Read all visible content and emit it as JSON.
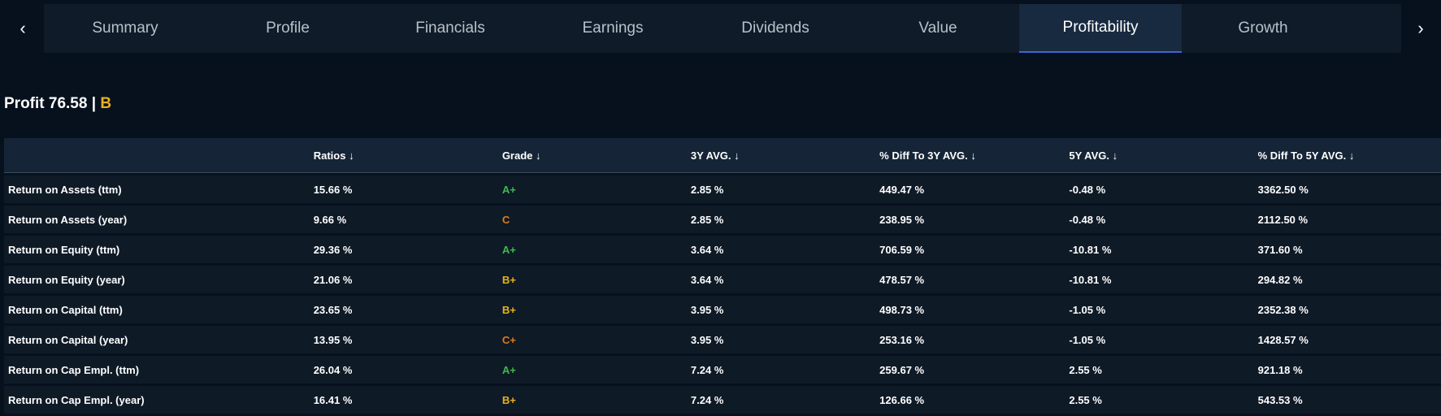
{
  "nav": {
    "prev_icon": "‹",
    "next_icon": "›",
    "tabs": [
      "Summary",
      "Profile",
      "Financials",
      "Earnings",
      "Dividends",
      "Value",
      "Profitability",
      "Growth"
    ],
    "active_tab": "Profitability"
  },
  "header": {
    "score_text": "Profit 76.58 | ",
    "grade": "B",
    "grade_color": "#e9b21c"
  },
  "table": {
    "sort_icon": "↓",
    "columns": [
      "",
      "Ratios",
      "Grade",
      "3Y AVG.",
      "% Diff To 3Y AVG.",
      "5Y AVG.",
      "% Diff To 5Y AVG."
    ],
    "rows": [
      {
        "name": "Return on Assets (ttm)",
        "ratio": "15.66 %",
        "grade": "A+",
        "avg3": "2.85 %",
        "diff3": "449.47 %",
        "avg5": "-0.48 %",
        "diff5": "3362.50 %"
      },
      {
        "name": "Return on Assets (year)",
        "ratio": "9.66 %",
        "grade": "C",
        "avg3": "2.85 %",
        "diff3": "238.95 %",
        "avg5": "-0.48 %",
        "diff5": "2112.50 %"
      },
      {
        "name": "Return on Equity (ttm)",
        "ratio": "29.36 %",
        "grade": "A+",
        "avg3": "3.64 %",
        "diff3": "706.59 %",
        "avg5": "-10.81 %",
        "diff5": "371.60 %"
      },
      {
        "name": "Return on Equity (year)",
        "ratio": "21.06 %",
        "grade": "B+",
        "avg3": "3.64 %",
        "diff3": "478.57 %",
        "avg5": "-10.81 %",
        "diff5": "294.82 %"
      },
      {
        "name": "Return on Capital (ttm)",
        "ratio": "23.65 %",
        "grade": "B+",
        "avg3": "3.95 %",
        "diff3": "498.73 %",
        "avg5": "-1.05 %",
        "diff5": "2352.38 %"
      },
      {
        "name": "Return on Capital (year)",
        "ratio": "13.95 %",
        "grade": "C+",
        "avg3": "3.95 %",
        "diff3": "253.16 %",
        "avg5": "-1.05 %",
        "diff5": "1428.57 %"
      },
      {
        "name": "Return on Cap Empl. (ttm)",
        "ratio": "26.04 %",
        "grade": "A+",
        "avg3": "7.24 %",
        "diff3": "259.67 %",
        "avg5": "2.55 %",
        "diff5": "921.18 %"
      },
      {
        "name": "Return on Cap Empl. (year)",
        "ratio": "16.41 %",
        "grade": "B+",
        "avg3": "7.24 %",
        "diff3": "126.66 %",
        "avg5": "2.55 %",
        "diff5": "543.53 %"
      }
    ]
  },
  "grade_colors": {
    "A+": "#3dbb4f",
    "B+": "#e9b21c",
    "C+": "#e07a1a",
    "C": "#e07a1a"
  }
}
